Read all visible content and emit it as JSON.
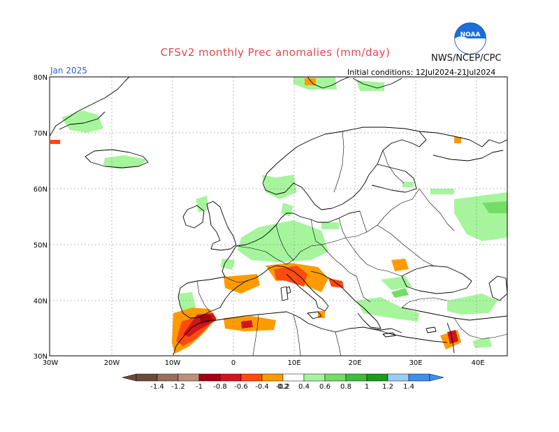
{
  "header": {
    "title": "CFSv2 monthly Prec anomalies (mm/day)",
    "agency": "NWS/NCEP/CPC",
    "logo_text": "NOAA",
    "month": "Jan 2025",
    "initial_conditions": "Initial conditions: 12Jul2024-21Jul2024"
  },
  "axes": {
    "lat_labels": [
      "80N",
      "70N",
      "60N",
      "50N",
      "40N",
      "30N"
    ],
    "lon_labels": [
      "30W",
      "20W",
      "10W",
      "0",
      "10E",
      "20E",
      "30E",
      "40E"
    ]
  },
  "colorbar": {
    "labels": [
      "-1.4",
      "-1.2",
      "-1",
      "-0.8",
      "-0.6",
      "-0.4",
      "-0.2",
      "0.2",
      "0.4",
      "0.6",
      "0.8",
      "1",
      "1.2",
      "1.4"
    ],
    "colors": [
      "#6e4a3a",
      "#9a6e5a",
      "#bf8f7a",
      "#a5000f",
      "#d1161c",
      "#ff4a10",
      "#ff9b00",
      "#ffffff",
      "#a6f59c",
      "#73dd66",
      "#3dbd3d",
      "#1a9c1a",
      "#9acdf5",
      "#3d8ef0"
    ]
  }
}
